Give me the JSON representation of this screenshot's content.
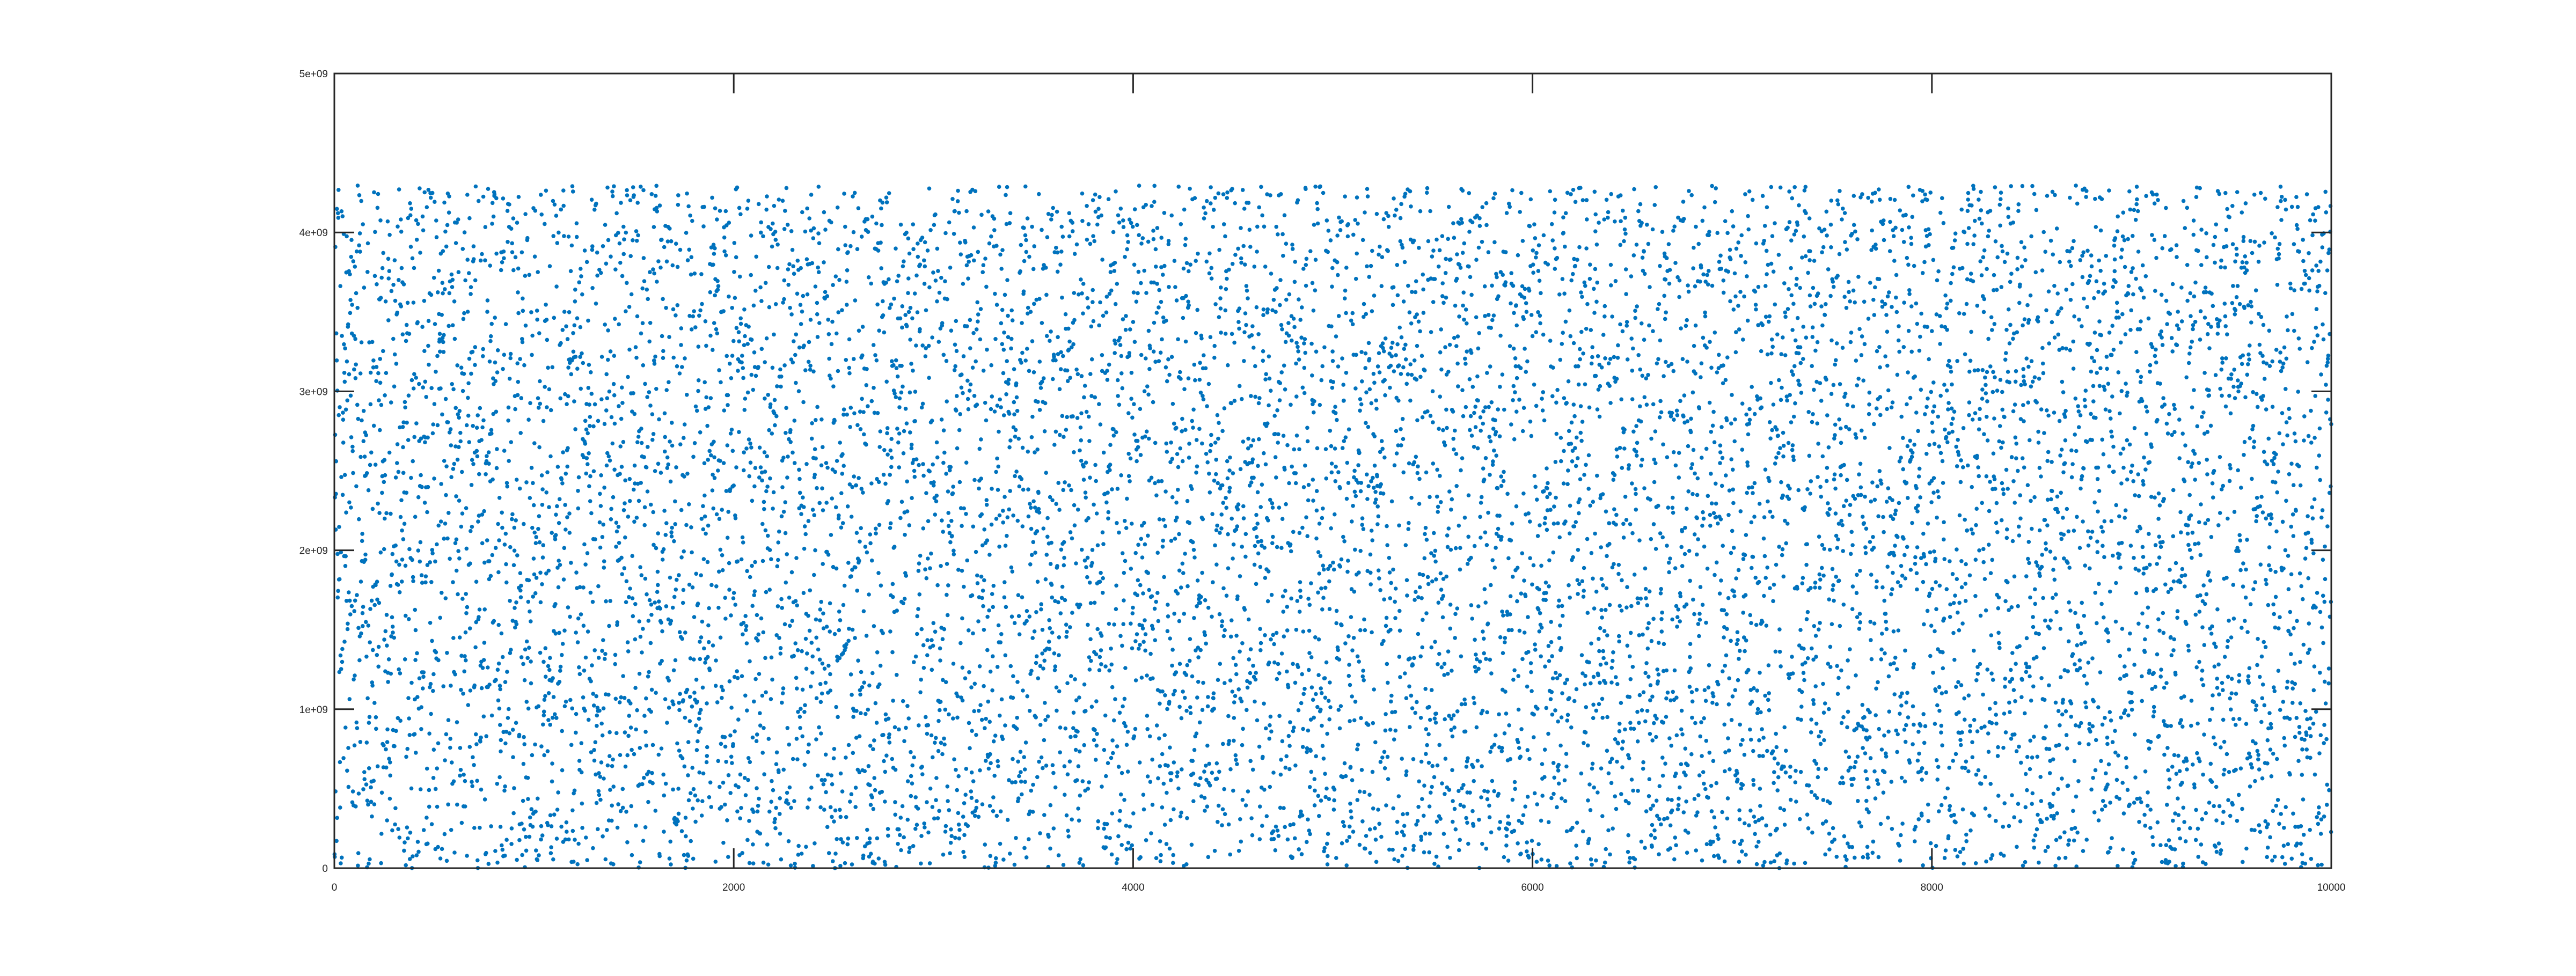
{
  "chart_data": {
    "type": "scatter",
    "title": "",
    "xlabel": "",
    "ylabel": "",
    "xlim": [
      0,
      10000
    ],
    "ylim": [
      0,
      5000000000
    ],
    "x_ticks": [
      0,
      2000,
      4000,
      6000,
      8000,
      10000
    ],
    "x_tick_labels": [
      "0",
      "2000",
      "4000",
      "6000",
      "8000",
      "10000"
    ],
    "y_ticks": [
      0,
      1000000000,
      2000000000,
      3000000000,
      4000000000,
      5000000000
    ],
    "y_tick_labels": [
      "0",
      "1e+09",
      "2e+09",
      "3e+09",
      "4e+09",
      "5e+09"
    ],
    "grid": false,
    "legend": "none",
    "series": [
      {
        "color": "#0072BD",
        "marker": "dot",
        "x_start": 1,
        "x_end": 10000,
        "count": 10000,
        "y_distribution": "uniform",
        "y_range": [
          0,
          4294967295
        ]
      }
    ]
  }
}
